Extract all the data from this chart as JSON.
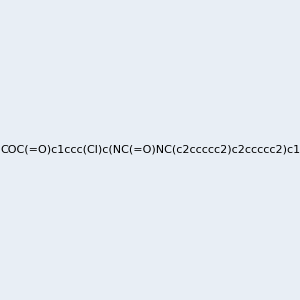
{
  "smiles": "COC(=O)c1ccc(Cl)c(NC(=O)NC(c2ccccc2)c2ccccc2)c1",
  "image_size": 300,
  "background_color": "#e8eef5",
  "title": ""
}
